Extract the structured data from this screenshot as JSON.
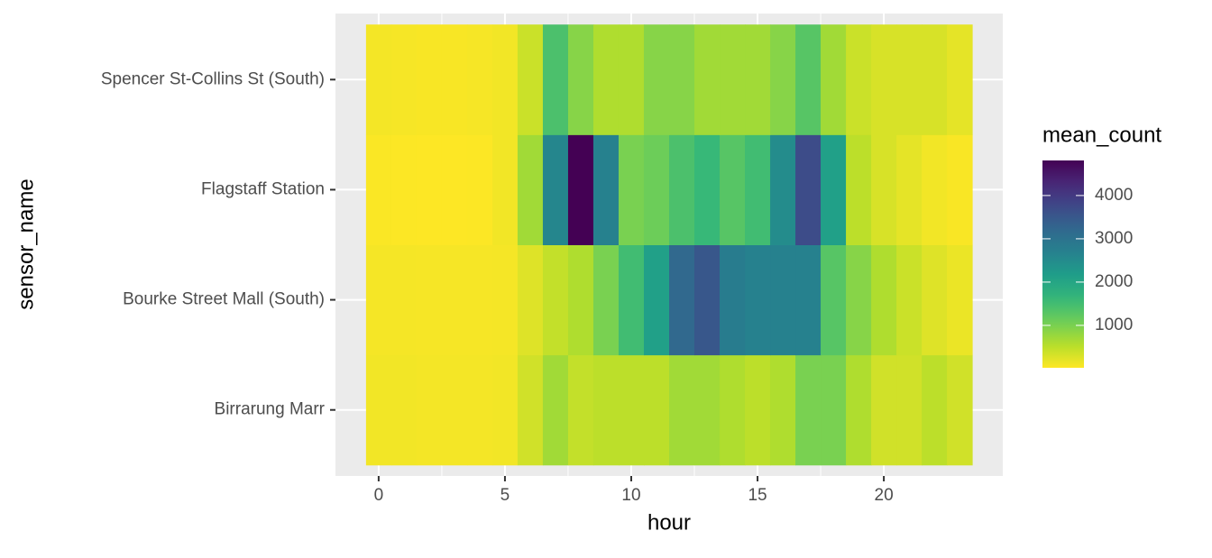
{
  "chart_data": {
    "type": "heatmap",
    "x_label": "hour",
    "y_label": "sensor_name",
    "legend_title": "mean_count",
    "colormap": "viridis",
    "reversed": true,
    "x": [
      0,
      1,
      2,
      3,
      4,
      5,
      6,
      7,
      8,
      9,
      10,
      11,
      12,
      13,
      14,
      15,
      16,
      17,
      18,
      19,
      20,
      21,
      22,
      23
    ],
    "y": [
      "Birrarung Marr",
      "Bourke Street Mall (South)",
      "Flagstaff Station",
      "Spencer St-Collins St (South)"
    ],
    "values": [
      [
        100,
        100,
        90,
        90,
        90,
        100,
        350,
        700,
        450,
        500,
        500,
        500,
        700,
        700,
        600,
        500,
        600,
        1000,
        1000,
        600,
        350,
        350,
        500,
        350
      ],
      [
        80,
        80,
        70,
        70,
        70,
        80,
        250,
        450,
        600,
        1000,
        1500,
        2100,
        3200,
        3500,
        2800,
        2700,
        2700,
        2700,
        1300,
        900,
        600,
        400,
        250,
        150
      ],
      [
        40,
        30,
        20,
        20,
        30,
        100,
        700,
        2600,
        4810,
        2700,
        1000,
        1100,
        1400,
        1600,
        1300,
        1500,
        2500,
        3700,
        2100,
        500,
        300,
        200,
        100,
        50
      ],
      [
        90,
        70,
        60,
        60,
        70,
        100,
        400,
        1400,
        900,
        600,
        600,
        900,
        900,
        700,
        700,
        700,
        900,
        1300,
        700,
        400,
        300,
        300,
        300,
        200
      ]
    ],
    "xlim": [
      -1.71,
      24.71
    ],
    "xticks": [
      0,
      5,
      10,
      15,
      20
    ],
    "clim": [
      20,
      4810
    ],
    "cticks": [
      1000,
      2000,
      3000,
      4000
    ],
    "grid": true
  }
}
